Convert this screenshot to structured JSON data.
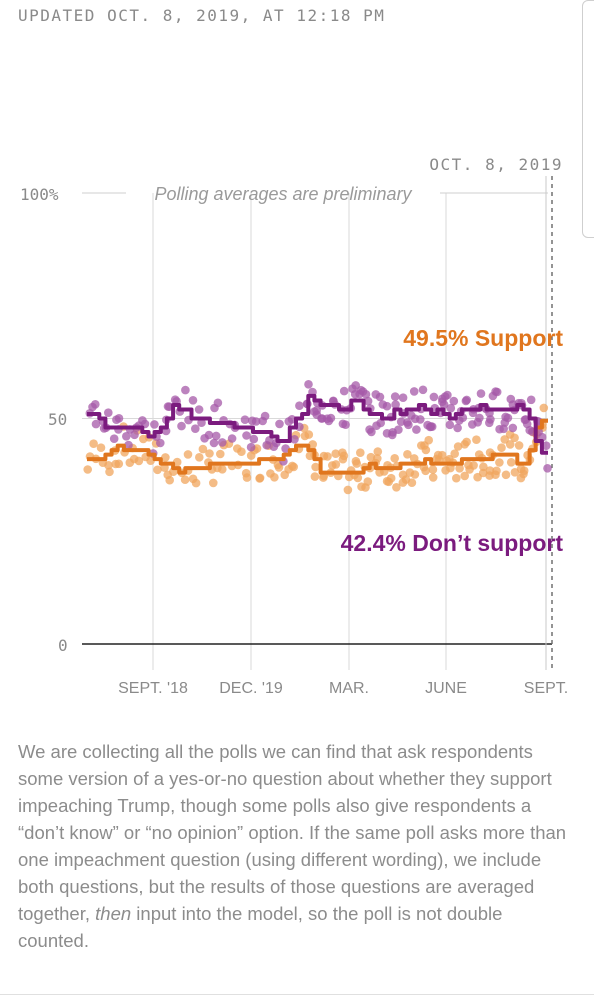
{
  "header": {
    "updated": "UPDATED OCT. 8, 2019, AT 12:18 PM"
  },
  "chart_data": {
    "type": "line",
    "date_label": "OCT. 8, 2019",
    "prelim_note": "Polling averages are preliminary",
    "y_ticks": [
      "0",
      "50",
      "100%"
    ],
    "ylim": [
      0,
      100
    ],
    "x_ticks": [
      "SEPT. '18",
      "DEC. '19",
      "MAR.",
      "JUNE",
      "SEPT."
    ],
    "grid": true,
    "colors": {
      "support": "#e0761e",
      "dont_support": "#7b1b7e"
    },
    "series": [
      {
        "name": "Support",
        "label": "49.5% Support",
        "final_value": 49.5,
        "color": "#e0761e",
        "values": [
          41,
          41,
          41,
          42,
          43,
          44,
          43,
          43,
          43,
          43,
          42,
          41,
          40,
          40,
          39,
          38,
          39,
          39,
          39,
          39,
          40,
          40,
          40,
          40,
          40,
          40,
          40,
          40,
          41,
          41,
          41,
          41,
          42,
          43,
          44,
          44,
          43,
          41,
          38,
          38,
          38,
          38,
          38,
          38,
          38,
          39,
          40,
          39,
          39,
          39,
          39,
          40,
          40,
          40,
          40,
          41,
          40,
          40,
          40,
          40,
          40,
          41,
          41,
          41,
          41,
          41,
          42,
          42,
          42,
          42,
          40,
          40,
          43,
          48,
          49.5
        ]
      },
      {
        "name": "Don't support",
        "label": "42.4% Don’t support",
        "final_value": 42.4,
        "color": "#7b1b7e",
        "values": [
          51,
          51,
          50,
          48,
          48,
          48,
          48,
          48,
          48,
          47,
          46,
          47,
          48,
          50,
          53,
          52,
          52,
          50,
          50,
          50,
          49,
          49,
          49,
          49,
          48,
          48,
          48,
          47,
          47,
          47,
          46,
          45,
          45,
          48,
          50,
          51,
          55,
          54,
          53,
          53,
          53,
          52,
          52,
          54,
          54,
          52,
          51,
          51,
          50,
          50,
          52,
          51,
          52,
          52,
          53,
          52,
          51,
          52,
          51,
          50,
          51,
          52,
          52,
          52,
          53,
          52,
          52,
          52,
          52,
          52,
          53,
          52,
          50,
          45,
          42.4
        ]
      }
    ]
  },
  "description": {
    "part1": "We are collecting all the polls we can find that ask respondents some version of a yes-or-no question about whether they support impeaching Trump, though some polls also give respondents a “don’t know” or “no opinion” option. If the same poll asks more than one impeachment question (using different wording), we include both questions, but the results of those questions are averaged together, ",
    "emphasis": "then",
    "part2": " input into the model, so the poll is not double counted."
  }
}
